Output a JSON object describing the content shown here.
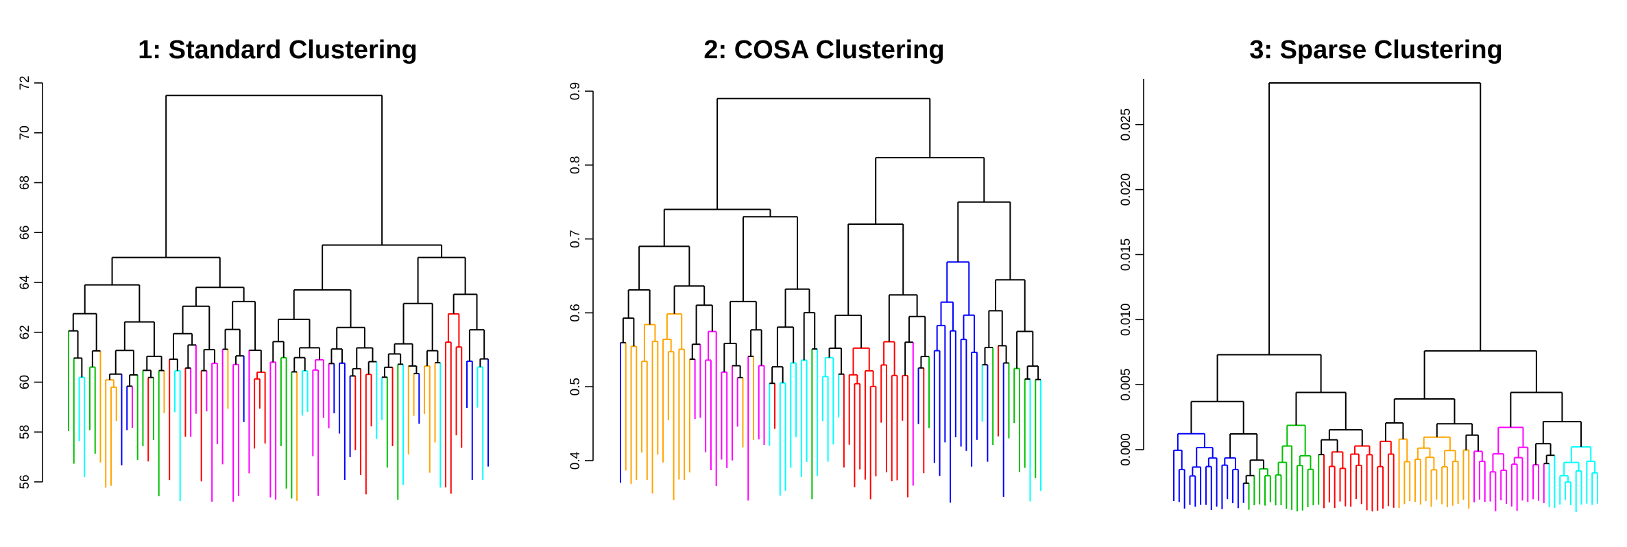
{
  "chart_data": [
    {
      "type": "dendrogram",
      "title": "1: Standard Clustering",
      "ylim": [
        56,
        72
      ],
      "yticks": [
        56,
        58,
        60,
        62,
        64,
        66,
        68,
        70,
        72
      ],
      "ytick_labels": [
        "56",
        "58",
        "60",
        "62",
        "64",
        "66",
        "68",
        "70",
        "72"
      ],
      "leaf_count": 80,
      "root_height": 71.5,
      "left_branch": {
        "height": 65.0,
        "sub_heights": [
          63.9,
          63.8
        ]
      },
      "right_branch": {
        "height": 65.5,
        "sub_heights": [
          63.7,
          65.0
        ]
      },
      "leaf_height_range": [
        55.2,
        59.0
      ],
      "leaf_cluster_colors": [
        "#ff00ff",
        "#00ffff",
        "#ffa500",
        "#ff0000",
        "#00c000",
        "#0000ff"
      ],
      "leaf_color_sequence": "mixed",
      "axis_side": "left",
      "grid": false
    },
    {
      "type": "dendrogram",
      "title": "2: COSA Clustering",
      "ylim": [
        0.4,
        0.9
      ],
      "yticks": [
        0.4,
        0.5,
        0.6,
        0.7,
        0.8,
        0.9
      ],
      "ytick_labels": [
        "0.4",
        "0.5",
        "0.6",
        "0.7",
        "0.8",
        "0.9"
      ],
      "leaf_count": 80,
      "root_height": 0.89,
      "left_branch": {
        "height": 0.74,
        "sub_heights": [
          0.69,
          0.73
        ]
      },
      "right_branch": {
        "height": 0.81,
        "sub_heights": [
          0.72,
          0.75
        ]
      },
      "leaf_height_range": [
        0.34,
        0.46
      ],
      "leaf_cluster_colors": [
        "#ffa500",
        "#ff00ff",
        "#00ffff",
        "#ff0000",
        "#0000ff",
        "#00c000"
      ],
      "leaf_color_sequence": "mostly-grouped",
      "axis_side": "left",
      "grid": false
    },
    {
      "type": "dendrogram",
      "title": "3: Sparse Clustering",
      "ylim": [
        0,
        0.0282
      ],
      "yticks": [
        0.0,
        0.005,
        0.01,
        0.015,
        0.02,
        0.025
      ],
      "ytick_labels": [
        "0.000",
        "0.005",
        "0.010",
        "0.015",
        "0.020",
        "0.025"
      ],
      "leaf_count": 80,
      "root_height": 0.0282,
      "left_branch": {
        "height": 0.0073,
        "sub_heights": [
          0.0037,
          0.0044
        ]
      },
      "right_branch": {
        "height": 0.0076,
        "sub_heights": [
          0.0039,
          0.0044
        ]
      },
      "leaf_height_range": [
        -0.0048,
        -0.0038
      ],
      "leaf_cluster_colors": [
        "#0000ff",
        "#00c000",
        "#ff0000",
        "#ffa500",
        "#ff00ff",
        "#00ffff"
      ],
      "leaf_color_sequence": "grouped",
      "axis_side": "left",
      "grid": false
    }
  ]
}
